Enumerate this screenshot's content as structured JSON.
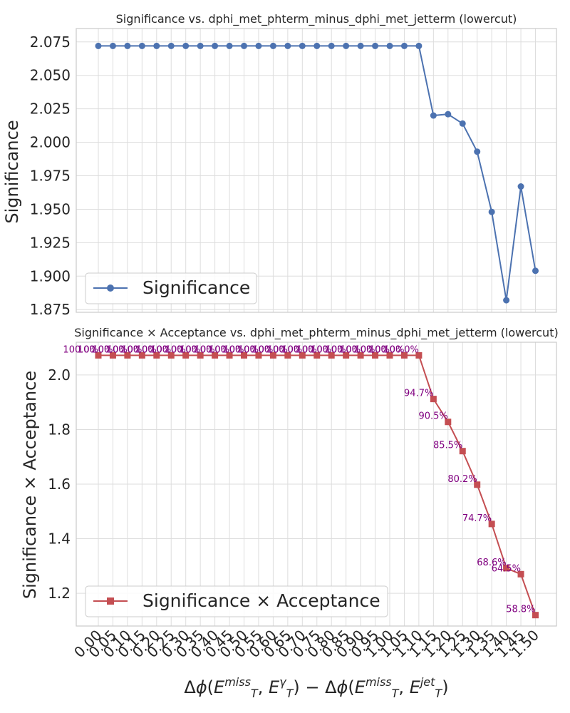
{
  "chart_data": [
    {
      "type": "line",
      "title": "Significance vs. dphi_met_phterm_minus_dphi_met_jetterm (lowercut)",
      "ylabel": "Significance",
      "ylim": [
        1.873,
        2.085
      ],
      "yticks": [
        "1.875",
        "1.900",
        "1.925",
        "1.950",
        "1.975",
        "2.000",
        "2.025",
        "2.050",
        "2.075"
      ],
      "grid": true,
      "legend_position": "lower-left",
      "color": "#4c72b0",
      "marker": "circle",
      "series": [
        {
          "name": "Significance",
          "x": [
            0.0,
            0.05,
            0.1,
            0.15,
            0.2,
            0.25,
            0.3,
            0.35,
            0.4,
            0.45,
            0.5,
            0.55,
            0.6,
            0.65,
            0.7,
            0.75,
            0.8,
            0.85,
            0.9,
            0.95,
            1.0,
            1.05,
            1.1,
            1.15,
            1.2,
            1.25,
            1.3,
            1.35,
            1.4,
            1.45,
            1.5
          ],
          "values": [
            2.072,
            2.072,
            2.072,
            2.072,
            2.072,
            2.072,
            2.072,
            2.072,
            2.072,
            2.072,
            2.072,
            2.072,
            2.072,
            2.072,
            2.072,
            2.072,
            2.072,
            2.072,
            2.072,
            2.072,
            2.072,
            2.072,
            2.072,
            2.02,
            2.021,
            2.014,
            1.993,
            1.948,
            1.882,
            1.967,
            1.904
          ]
        }
      ]
    },
    {
      "type": "line",
      "title": "Significance × Acceptance vs. dphi_met_phterm_minus_dphi_met_jetterm (lowercut)",
      "xlabel": "Δϕ(E_T^miss, E_T^γ) − Δϕ(E_T^miss, E_T^jet)",
      "ylabel": "Significance × Acceptance",
      "ylim": [
        1.08,
        2.12
      ],
      "yticks": [
        "1.2",
        "1.4",
        "1.6",
        "1.8",
        "2.0"
      ],
      "xticks": [
        "0.00",
        "0.05",
        "0.10",
        "0.15",
        "0.20",
        "0.25",
        "0.30",
        "0.35",
        "0.40",
        "0.45",
        "0.50",
        "0.55",
        "0.60",
        "0.65",
        "0.70",
        "0.75",
        "0.80",
        "0.85",
        "0.90",
        "0.95",
        "1.00",
        "1.05",
        "1.10",
        "1.15",
        "1.20",
        "1.25",
        "1.30",
        "1.35",
        "1.40",
        "1.45",
        "1.50"
      ],
      "grid": true,
      "legend_position": "lower-left",
      "color": "#c44e52",
      "marker": "square",
      "series": [
        {
          "name": "Significance × Acceptance",
          "x": [
            0.0,
            0.05,
            0.1,
            0.15,
            0.2,
            0.25,
            0.3,
            0.35,
            0.4,
            0.45,
            0.5,
            0.55,
            0.6,
            0.65,
            0.7,
            0.75,
            0.8,
            0.85,
            0.9,
            0.95,
            1.0,
            1.05,
            1.1,
            1.15,
            1.2,
            1.25,
            1.3,
            1.35,
            1.4,
            1.45,
            1.5
          ],
          "values": [
            2.072,
            2.072,
            2.072,
            2.072,
            2.072,
            2.072,
            2.072,
            2.072,
            2.072,
            2.072,
            2.072,
            2.072,
            2.072,
            2.072,
            2.072,
            2.072,
            2.072,
            2.072,
            2.072,
            2.072,
            2.072,
            2.072,
            2.072,
            1.912,
            1.828,
            1.721,
            1.598,
            1.454,
            1.292,
            1.27,
            1.12
          ],
          "annotations": [
            "100.0%",
            "100.0%",
            "100.0%",
            "100.0%",
            "100.0%",
            "100.0%",
            "100.0%",
            "100.0%",
            "100.0%",
            "100.0%",
            "100.0%",
            "100.0%",
            "100.0%",
            "100.0%",
            "100.0%",
            "100.0%",
            "100.0%",
            "100.0%",
            "100.0%",
            "100.0%",
            "100.0%",
            "100.0%",
            "100.0%",
            "94.7%",
            "90.5%",
            "85.5%",
            "80.2%",
            "74.7%",
            "68.6%",
            "64.5%",
            "58.8%"
          ]
        }
      ]
    }
  ]
}
